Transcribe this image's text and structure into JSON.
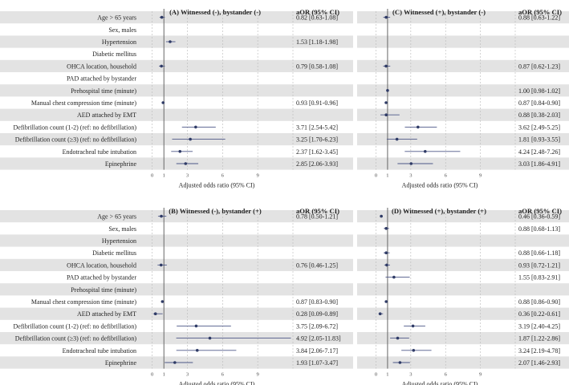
{
  "colors": {
    "band": "#e3e3e3",
    "ci_line": "#4d5787",
    "point": "#2f3b66",
    "ref_line": "#666666",
    "grid": "#b8b8b8"
  },
  "chart_data": [
    {
      "type": "forest",
      "title": "(A) Witnessed (-), bystander (-)",
      "value_header": "aOR (95% CI)",
      "xlabel": "Adjusted odds ratio (95% CI)",
      "xlim": [
        -1,
        12
      ],
      "xticks": [
        "0",
        "1",
        "3",
        "6",
        "9"
      ],
      "xtick_values": [
        0,
        1,
        3,
        6,
        9
      ],
      "reference_line": 1,
      "rows": [
        {
          "label": "Age > 65 years",
          "or": 0.82,
          "lo": 0.63,
          "hi": 1.08,
          "text": "0.82 [0.63-1.08]"
        },
        {
          "label": "Sex, males",
          "or": null,
          "lo": null,
          "hi": null,
          "text": ""
        },
        {
          "label": "Hypertension",
          "or": 1.53,
          "lo": 1.18,
          "hi": 1.98,
          "text": "1.53 [1.18-1.98]"
        },
        {
          "label": "Diabetic mellitus",
          "or": null,
          "lo": null,
          "hi": null,
          "text": ""
        },
        {
          "label": "OHCA location, household",
          "or": 0.79,
          "lo": 0.58,
          "hi": 1.08,
          "text": "0.79 [0.58-1.08]"
        },
        {
          "label": "PAD attached by bystander",
          "or": null,
          "lo": null,
          "hi": null,
          "text": ""
        },
        {
          "label": "Prehospital time (minute)",
          "or": null,
          "lo": null,
          "hi": null,
          "text": ""
        },
        {
          "label": "Manual chest compression time (minute)",
          "or": 0.93,
          "lo": 0.91,
          "hi": 0.96,
          "text": "0.93 [0.91-0.96]"
        },
        {
          "label": "AED attached by EMT",
          "or": null,
          "lo": null,
          "hi": null,
          "text": ""
        },
        {
          "label": "Defibrillation count (1-2) (ref: no defibrillation)",
          "or": 3.71,
          "lo": 2.54,
          "hi": 5.42,
          "text": "3.71 [2.54-5.42]"
        },
        {
          "label": "Defibrillation count (≥3) (ref: no defibrillation)",
          "or": 3.25,
          "lo": 1.7,
          "hi": 6.23,
          "text": "3.25 [1.70-6.23]"
        },
        {
          "label": "Endotracheal tube intubation",
          "or": 2.37,
          "lo": 1.62,
          "hi": 3.45,
          "text": "2.37 [1.62-3.45]"
        },
        {
          "label": "Epinephrine",
          "or": 2.85,
          "lo": 2.06,
          "hi": 3.93,
          "text": "2.85 [2.06-3.93]"
        }
      ]
    },
    {
      "type": "forest",
      "title": "(C) Witnessed (+), bystander (-)",
      "value_header": "aOR (95% CI)",
      "xlabel": "Adjusted odds ratio (95% CI)",
      "xlim": [
        -1,
        12
      ],
      "xticks": [
        "0",
        "1",
        "3",
        "6",
        "9"
      ],
      "xtick_values": [
        0,
        1,
        3,
        6,
        9
      ],
      "reference_line": 1,
      "rows": [
        {
          "label": "",
          "or": 0.88,
          "lo": 0.63,
          "hi": 1.22,
          "text": "0.88 [0.63-1.22]"
        },
        {
          "label": "",
          "or": null,
          "lo": null,
          "hi": null,
          "text": ""
        },
        {
          "label": "",
          "or": null,
          "lo": null,
          "hi": null,
          "text": ""
        },
        {
          "label": "",
          "or": null,
          "lo": null,
          "hi": null,
          "text": ""
        },
        {
          "label": "",
          "or": 0.87,
          "lo": 0.62,
          "hi": 1.23,
          "text": "0.87 [0.62-1.23]"
        },
        {
          "label": "",
          "or": null,
          "lo": null,
          "hi": null,
          "text": ""
        },
        {
          "label": "",
          "or": 1.0,
          "lo": 0.98,
          "hi": 1.02,
          "text": "1.00 [0.98-1.02]"
        },
        {
          "label": "",
          "or": 0.87,
          "lo": 0.84,
          "hi": 0.9,
          "text": "0.87 [0.84-0.90]"
        },
        {
          "label": "",
          "or": 0.88,
          "lo": 0.38,
          "hi": 2.03,
          "text": "0.88 [0.38-2.03]"
        },
        {
          "label": "",
          "or": 3.62,
          "lo": 2.49,
          "hi": 5.25,
          "text": "3.62 [2.49-5.25]"
        },
        {
          "label": "",
          "or": 1.81,
          "lo": 0.93,
          "hi": 3.55,
          "text": "1.81 [0.93-3.55]"
        },
        {
          "label": "",
          "or": 4.24,
          "lo": 2.48,
          "hi": 7.26,
          "text": "4.24 [2.48-7.26]"
        },
        {
          "label": "",
          "or": 3.03,
          "lo": 1.86,
          "hi": 4.91,
          "text": "3.03 [1.86-4.91]"
        }
      ]
    },
    {
      "type": "forest",
      "title": "(B) Witnessed (-), bystander (+)",
      "value_header": "aOR (95% CI)",
      "xlabel": "Adjusted odds ratio (95% CI)",
      "xlim": [
        -1,
        12
      ],
      "xticks": [
        "0",
        "1",
        "3",
        "6",
        "9"
      ],
      "xtick_values": [
        0,
        1,
        3,
        6,
        9
      ],
      "reference_line": 1,
      "rows": [
        {
          "label": "Age > 65 years",
          "or": 0.78,
          "lo": 0.5,
          "hi": 1.21,
          "text": "0.78 [0.50-1.21]"
        },
        {
          "label": "Sex, males",
          "or": null,
          "lo": null,
          "hi": null,
          "text": ""
        },
        {
          "label": "Hypertension",
          "or": null,
          "lo": null,
          "hi": null,
          "text": ""
        },
        {
          "label": "Diabetic mellitus",
          "or": null,
          "lo": null,
          "hi": null,
          "text": ""
        },
        {
          "label": "OHCA location, household",
          "or": 0.76,
          "lo": 0.46,
          "hi": 1.25,
          "text": "0.76 [0.46-1.25]"
        },
        {
          "label": "PAD attached by bystander",
          "or": null,
          "lo": null,
          "hi": null,
          "text": ""
        },
        {
          "label": "Prehospital time (minute)",
          "or": null,
          "lo": null,
          "hi": null,
          "text": ""
        },
        {
          "label": "Manual chest compression time (minute)",
          "or": 0.87,
          "lo": 0.83,
          "hi": 0.9,
          "text": "0.87 [0.83-0.90]"
        },
        {
          "label": "AED attached by EMT",
          "or": 0.28,
          "lo": 0.09,
          "hi": 0.89,
          "text": "0.28 [0.09-0.89]"
        },
        {
          "label": "Defibrillation count (1-2) (ref: no defibrillation)",
          "or": 3.75,
          "lo": 2.09,
          "hi": 6.72,
          "text": "3.75 [2.09-6.72]"
        },
        {
          "label": "Defibrillation count (≥3) (ref: no defibrillation)",
          "or": 4.92,
          "lo": 2.05,
          "hi": 11.83,
          "text": "4.92 [2.05-11.83]"
        },
        {
          "label": "Endotracheal tube intubation",
          "or": 3.84,
          "lo": 2.06,
          "hi": 7.17,
          "text": "3.84 [2.06-7.17]"
        },
        {
          "label": "Epinephrine",
          "or": 1.93,
          "lo": 1.07,
          "hi": 3.47,
          "text": "1.93 [1.07-3.47]"
        }
      ]
    },
    {
      "type": "forest",
      "title": "(D) Witnessed (+), bystander (+)",
      "value_header": "aOR (95% CI)",
      "xlabel": "Adjusted odds ratio (95% CI)",
      "xlim": [
        -1,
        12
      ],
      "xticks": [
        "0",
        "1",
        "3",
        "6",
        "9"
      ],
      "xtick_values": [
        0,
        1,
        3,
        6,
        9
      ],
      "reference_line": 1,
      "rows": [
        {
          "label": "",
          "or": 0.46,
          "lo": 0.36,
          "hi": 0.59,
          "text": "0.46 [0.36-0.59]"
        },
        {
          "label": "",
          "or": 0.88,
          "lo": 0.68,
          "hi": 1.13,
          "text": "0.88 [0.68-1.13]"
        },
        {
          "label": "",
          "or": null,
          "lo": null,
          "hi": null,
          "text": ""
        },
        {
          "label": "",
          "or": 0.88,
          "lo": 0.66,
          "hi": 1.18,
          "text": "0.88 [0.66-1.18]"
        },
        {
          "label": "",
          "or": 0.93,
          "lo": 0.72,
          "hi": 1.21,
          "text": "0.93 [0.72-1.21]"
        },
        {
          "label": "",
          "or": 1.55,
          "lo": 0.83,
          "hi": 2.91,
          "text": "1.55 [0.83-2.91]"
        },
        {
          "label": "",
          "or": null,
          "lo": null,
          "hi": null,
          "text": ""
        },
        {
          "label": "",
          "or": 0.88,
          "lo": 0.86,
          "hi": 0.9,
          "text": "0.88 [0.86-0.90]"
        },
        {
          "label": "",
          "or": 0.36,
          "lo": 0.22,
          "hi": 0.61,
          "text": "0.36 [0.22-0.61]"
        },
        {
          "label": "",
          "or": 3.19,
          "lo": 2.4,
          "hi": 4.25,
          "text": "3.19 [2.40-4.25]"
        },
        {
          "label": "",
          "or": 1.87,
          "lo": 1.22,
          "hi": 2.86,
          "text": "1.87 [1.22-2.86]"
        },
        {
          "label": "",
          "or": 3.24,
          "lo": 2.19,
          "hi": 4.78,
          "text": "3.24 [2.19-4.78]"
        },
        {
          "label": "",
          "or": 2.07,
          "lo": 1.46,
          "hi": 2.93,
          "text": "2.07 [1.46-2.93]"
        }
      ]
    }
  ]
}
